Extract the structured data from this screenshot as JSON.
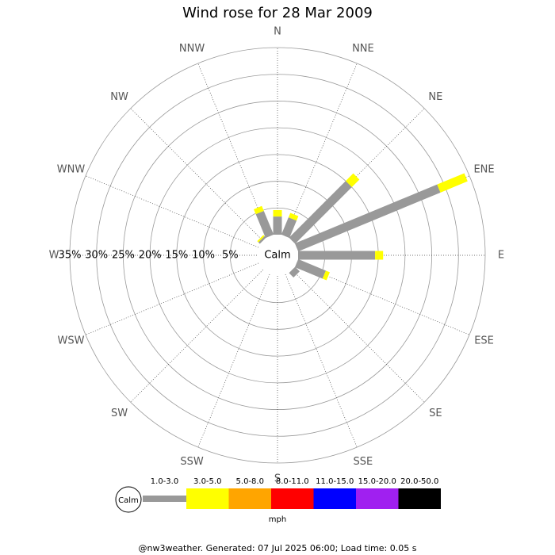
{
  "chart_data": {
    "type": "wind_rose",
    "title": "Wind rose for 28 Mar 2009",
    "directions": [
      "N",
      "NNE",
      "NE",
      "ENE",
      "E",
      "ESE",
      "SE",
      "SSE",
      "S",
      "SSW",
      "SW",
      "WSW",
      "W",
      "WNW",
      "NW",
      "NNW"
    ],
    "calm_label": "Calm",
    "rlim": [
      0,
      35
    ],
    "rticks": [
      {
        "value": 5,
        "label": "5%"
      },
      {
        "value": 10,
        "label": "10%"
      },
      {
        "value": 15,
        "label": "15%"
      },
      {
        "value": 20,
        "label": "20%"
      },
      {
        "value": 25,
        "label": "25%"
      },
      {
        "value": 30,
        "label": "30%"
      },
      {
        "value": 35,
        "label": "35%"
      }
    ],
    "series": [
      {
        "name": "1.0-3.0",
        "color": "#999999",
        "values": [
          3.4,
          3.5,
          15,
          28.8,
          14.4,
          5.6,
          1.2,
          0,
          0,
          0,
          0,
          0,
          0,
          0,
          0.4,
          4.8
        ]
      },
      {
        "name": "3.0-5.0",
        "color": "#ffff00",
        "values": [
          1.2,
          0.9,
          2,
          5.5,
          1.5,
          0.8,
          0,
          0,
          0,
          0,
          0,
          0,
          0,
          0,
          0.3,
          1.0
        ]
      },
      {
        "name": "5.0-8.0",
        "color": "#ffa500",
        "values": [
          0,
          0,
          0,
          0,
          0,
          0,
          0,
          0,
          0,
          0,
          0,
          0,
          0,
          0,
          0,
          0
        ]
      },
      {
        "name": "8.0-11.0",
        "color": "#ff0000",
        "values": [
          0,
          0,
          0,
          0,
          0,
          0,
          0,
          0,
          0,
          0,
          0,
          0,
          0,
          0,
          0,
          0
        ]
      },
      {
        "name": "11.0-15.0",
        "color": "#0000ff",
        "values": [
          0,
          0,
          0,
          0,
          0,
          0,
          0,
          0,
          0,
          0,
          0,
          0,
          0,
          0,
          0,
          0
        ]
      },
      {
        "name": "15.0-20.0",
        "color": "#a020f0",
        "values": [
          0,
          0,
          0,
          0,
          0,
          0,
          0,
          0,
          0,
          0,
          0,
          0,
          0,
          0,
          0,
          0
        ]
      },
      {
        "name": "20.0-50.0",
        "color": "#000000",
        "values": [
          0,
          0,
          0,
          0,
          0,
          0,
          0,
          0,
          0,
          0,
          0,
          0,
          0,
          0,
          0,
          0
        ]
      }
    ],
    "legend_title": "mph",
    "footer": "@nw3weather. Generated: 07 Jul 2025 06:00; Load time: 0.05 s"
  }
}
